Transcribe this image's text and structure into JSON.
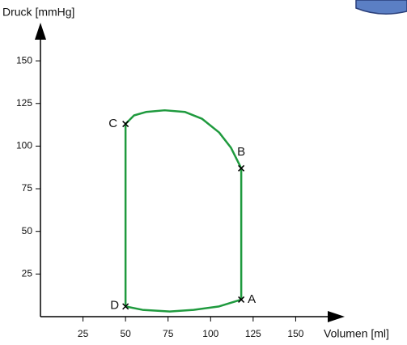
{
  "chart_data": {
    "type": "line",
    "y_label": "Druck [mmHg]",
    "x_label": "Volumen [ml]",
    "xlim": [
      0,
      175
    ],
    "ylim": [
      0,
      170
    ],
    "xticks": [
      25,
      50,
      75,
      100,
      125,
      150
    ],
    "yticks": [
      25,
      50,
      75,
      100,
      125,
      150
    ],
    "series": [
      {
        "color": "#1f9a3e",
        "x": [
          50,
          50,
          55,
          62,
          73,
          85,
          95,
          105,
          112,
          118,
          118,
          105,
          90,
          76,
          60,
          50
        ],
        "values": [
          6,
          113,
          118,
          120,
          121,
          120,
          116,
          108,
          99,
          87,
          10,
          6,
          4,
          3,
          4,
          6
        ]
      }
    ],
    "points": [
      {
        "label": "A",
        "x": 118,
        "y": 10
      },
      {
        "label": "B",
        "x": 118,
        "y": 87
      },
      {
        "label": "C",
        "x": 50,
        "y": 113
      },
      {
        "label": "D",
        "x": 50,
        "y": 6
      }
    ]
  }
}
